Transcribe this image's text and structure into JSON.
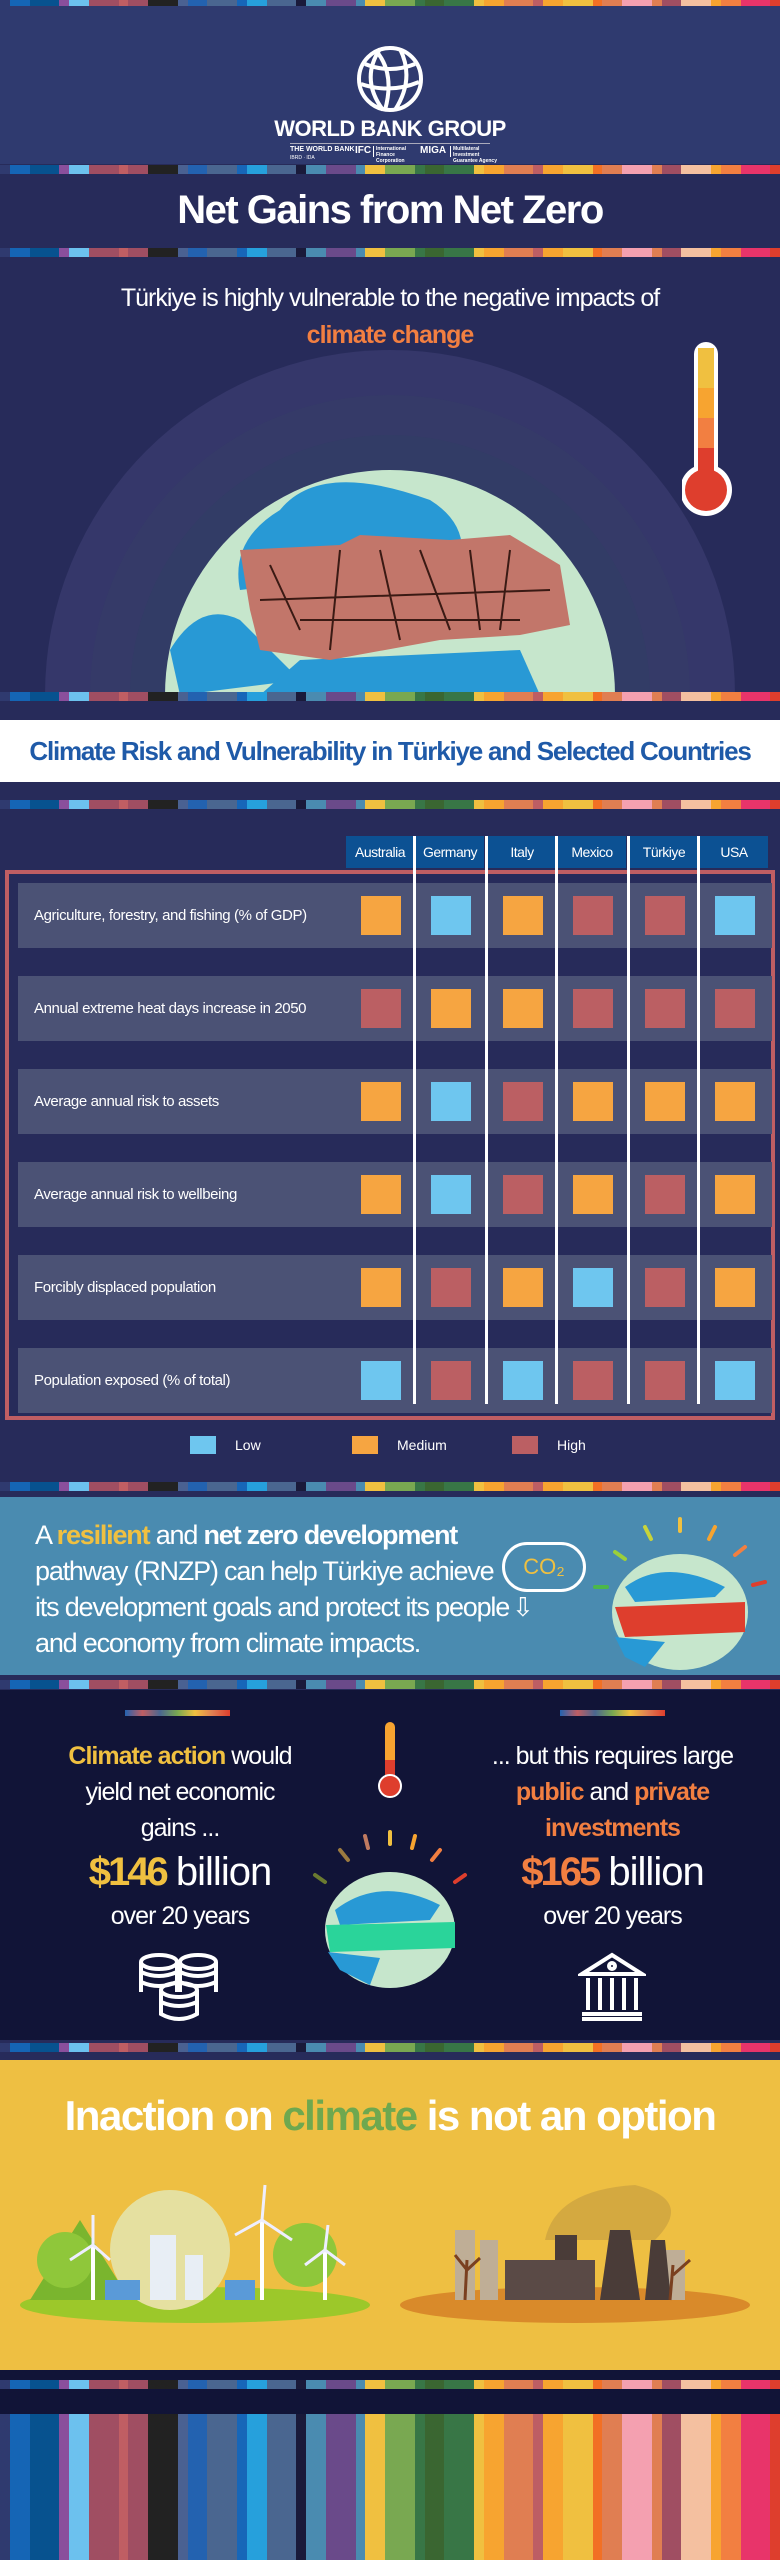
{
  "colors": {
    "navy": "#272b5a",
    "dark_navy": "#111437",
    "row_bg": "#4b5275",
    "header_blue": "#0c5193",
    "low": "#6ec6ef",
    "medium": "#f6a541",
    "high": "#bb5f63",
    "accent_orange": "#f27f41",
    "accent_yellow": "#f0c040",
    "accent_green": "#6ea84f",
    "banner_blue": "#4a8bb0",
    "title_blue": "#1f5aa8",
    "stripe_palette": [
      "#2f3a6f",
      "#1565b5",
      "#07528f",
      "#8a4f9c",
      "#6cc1ee",
      "#a04e62",
      "#c05e63",
      "#a04e62",
      "#222222",
      "#4a6192",
      "#2362b0",
      "#4a6690",
      "#1766b8",
      "#26a0dc",
      "#4a6690",
      "#1a1a3a",
      "#4a8bb0",
      "#6a4a8a",
      "#4a8bb0",
      "#f0c040",
      "#79a851",
      "#387646",
      "#3a6631",
      "#387646",
      "#f0c040",
      "#f7a430",
      "#e07e52",
      "#bd5e64",
      "#f7a430",
      "#f0c040",
      "#f27024",
      "#e07e52",
      "#f4a0b0",
      "#e07e52",
      "#a04e62",
      "#f4c0a0",
      "#f7a430",
      "#f27f41",
      "#e8346a",
      "#de3e2d"
    ]
  },
  "header": {
    "logo_name": "WORLD BANK GROUP",
    "sub_1": "THE WORLD BANK",
    "sub_1b": "IBRD · IDA",
    "sub_2": "IFC",
    "sub_2b": "International Finance Corporation",
    "sub_3": "MIGA",
    "sub_3b": "Multilateral Investment Guarantee Agency"
  },
  "title": "Net Gains from Net Zero",
  "intro": {
    "line1": "Türkiye is highly vulnerable to the negative impacts of",
    "highlight": "climate change"
  },
  "table": {
    "title": "Climate Risk and Vulnerability in Türkiye and Selected Countries",
    "columns": [
      "Australia",
      "Germany",
      "Italy",
      "Mexico",
      "Türkiye",
      "USA"
    ],
    "rows": [
      {
        "label": "Agriculture, forestry, and fishing (% of GDP)",
        "values": [
          "Medium",
          "Low",
          "Medium",
          "High",
          "High",
          "Low"
        ]
      },
      {
        "label": "Annual extreme heat days increase in 2050",
        "values": [
          "High",
          "Medium",
          "Medium",
          "High",
          "High",
          "High"
        ]
      },
      {
        "label": "Average annual risk to assets",
        "values": [
          "Medium",
          "Low",
          "High",
          "Medium",
          "Medium",
          "Medium"
        ]
      },
      {
        "label": "Average annual risk to wellbeing",
        "values": [
          "Medium",
          "Low",
          "High",
          "Medium",
          "High",
          "Medium"
        ]
      },
      {
        "label": "Forcibly displaced population",
        "values": [
          "Medium",
          "High",
          "Medium",
          "Low",
          "High",
          "Medium"
        ]
      },
      {
        "label": "Population exposed (% of total)",
        "values": [
          "Low",
          "High",
          "Low",
          "High",
          "High",
          "Low"
        ]
      }
    ],
    "legend": [
      "Low",
      "Medium",
      "High"
    ]
  },
  "rnzp": {
    "w1": "A",
    "w2": "resilient",
    "w3": "and",
    "w4": "net zero development",
    "line2": "pathway (RNZP) can help Türkiye achieve",
    "line3": "its development goals and protect its people",
    "line4": "and economy from climate impacts.",
    "co2": "CO₂"
  },
  "gains": {
    "left": {
      "hl": "Climate action",
      "t1": "would",
      "t2": "yield net economic",
      "t3": "gains ...",
      "amount": "$146",
      "unit": "billion",
      "period": "over 20 years"
    },
    "right": {
      "t1": "... but this requires large",
      "hl1": "public",
      "t2": "and",
      "hl2": "private",
      "hl3": "investments",
      "amount": "$165",
      "unit": "billion",
      "period": "over 20 years"
    }
  },
  "inaction": {
    "w1": "Inaction on",
    "hl": "climate",
    "w2": "is not an option"
  }
}
